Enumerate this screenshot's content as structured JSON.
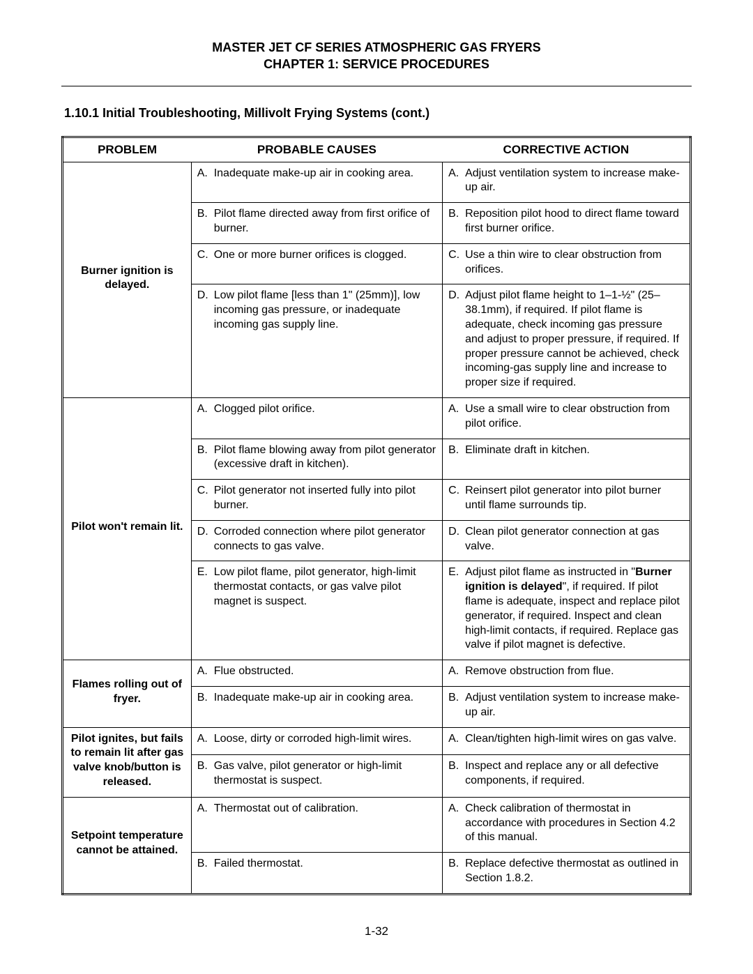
{
  "header": {
    "line1": "MASTER JET CF SERIES ATMOSPHERIC GAS FRYERS",
    "line2": "CHAPTER 1:  SERVICE PROCEDURES"
  },
  "section_heading": "1.10.1  Initial Troubleshooting, Millivolt Frying Systems (cont.)",
  "columns": {
    "problem": "PROBLEM",
    "causes": "PROBABLE CAUSES",
    "action": "CORRECTIVE ACTION"
  },
  "problems": [
    {
      "label": "Burner ignition is delayed.",
      "rows": [
        {
          "letter": "A.",
          "cause": "Inadequate make-up air in cooking area.",
          "action": "Adjust ventilation system to increase make-up air."
        },
        {
          "letter": "B.",
          "cause": "Pilot flame directed away from first orifice of burner.",
          "action": "Reposition pilot hood to direct flame toward first burner orifice."
        },
        {
          "letter": "C.",
          "cause": "One or more burner orifices is clogged.",
          "action": "Use a thin wire to clear obstruction from orifices."
        },
        {
          "letter": "D.",
          "cause": "Low pilot flame [less than 1\" (25mm)], low incoming gas pressure, or inadequate incoming gas supply line.",
          "action": "Adjust pilot flame height to 1–1-½\" (25– 38.1mm), if required.  If pilot flame is adequate, check incoming gas pressure and adjust to proper pressure, if required.  If proper pressure cannot be achieved, check incoming-gas supply line and increase to proper size if required."
        }
      ]
    },
    {
      "label": "Pilot won't remain lit.",
      "rows": [
        {
          "letter": "A.",
          "cause": "Clogged pilot orifice.",
          "action": "Use a small wire to clear obstruction from pilot orifice."
        },
        {
          "letter": "B.",
          "cause": "Pilot flame blowing away from pilot generator (excessive draft in kitchen).",
          "action": "Eliminate draft in kitchen."
        },
        {
          "letter": "C.",
          "cause": "Pilot generator not inserted fully into pilot burner.",
          "action": "Reinsert pilot generator into pilot burner until flame surrounds tip."
        },
        {
          "letter": "D.",
          "cause": "Corroded connection where pilot generator connects to gas valve.",
          "action": "Clean pilot generator connection at gas valve."
        },
        {
          "letter": "E.",
          "cause": "Low pilot flame, pilot generator, high-limit thermostat contacts, or gas valve pilot magnet is suspect.",
          "action_pre": "Adjust pilot flame as instructed in \"",
          "action_bold": "Burner ignition is delayed",
          "action_post": "\", if required.  If pilot flame is adequate, inspect and replace pilot generator, if required.  Inspect and clean high-limit contacts, if required.  Replace gas valve if pilot magnet is defective."
        }
      ]
    },
    {
      "label": "Flames rolling out of fryer.",
      "rows": [
        {
          "letter": "A.",
          "cause": "Flue obstructed.",
          "action": "Remove obstruction from flue."
        },
        {
          "letter": "B.",
          "cause": "Inadequate make-up air in cooking area.",
          "action": "Adjust ventilation system to increase make-up air."
        }
      ]
    },
    {
      "label": "Pilot ignites, but fails to remain lit after gas valve knob/button is released.",
      "rows": [
        {
          "letter": "A.",
          "cause": "Loose, dirty or corroded high-limit wires.",
          "action": "Clean/tighten high-limit wires on gas valve."
        },
        {
          "letter": "B.",
          "cause": "Gas valve, pilot generator or high-limit thermostat is suspect.",
          "action": "Inspect and replace any or all defective components, if required."
        }
      ]
    },
    {
      "label": "Setpoint temperature cannot be attained.",
      "rows": [
        {
          "letter": "A.",
          "cause": "Thermostat out of calibration.",
          "action": "Check calibration of thermostat in accordance with procedures in Section 4.2 of this manual."
        },
        {
          "letter": "B.",
          "cause": "Failed thermostat.",
          "action": "Replace defective thermostat as outlined in Section 1.8.2."
        }
      ]
    }
  ],
  "page_number": "1-32"
}
